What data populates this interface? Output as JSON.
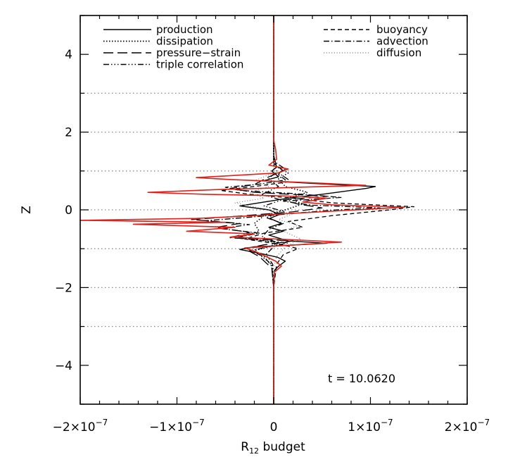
{
  "chart_data": {
    "type": "line",
    "xlabel_main": "R",
    "xlabel_sub": "12",
    "xlabel_rest": " budget",
    "ylabel": "Z",
    "xlim": [
      -2e-07,
      2e-07
    ],
    "ylim": [
      -5,
      5
    ],
    "x_ticks": [
      {
        "value": -2e-07,
        "mant": "−2×10",
        "exp": "−7"
      },
      {
        "value": -1e-07,
        "mant": "−1×10",
        "exp": "−7"
      },
      {
        "value": 0,
        "mant": "0",
        "exp": ""
      },
      {
        "value": 1e-07,
        "mant": "1×10",
        "exp": "−7"
      },
      {
        "value": 2e-07,
        "mant": "2×10",
        "exp": "−7"
      }
    ],
    "y_ticks": [
      {
        "value": -4,
        "label": "−4"
      },
      {
        "value": -2,
        "label": "−2"
      },
      {
        "value": 0,
        "label": "0"
      },
      {
        "value": 2,
        "label": "2"
      },
      {
        "value": 4,
        "label": "4"
      }
    ],
    "reference_lines_z": [
      -3,
      -2,
      -1,
      0,
      1,
      2,
      3
    ],
    "annotation": "t  =  10.0620",
    "legend": [
      {
        "name": "production",
        "style": "solid",
        "column": 0
      },
      {
        "name": "dissipation",
        "style": "dotted",
        "column": 0
      },
      {
        "name": "pressure−strain",
        "style": "longdash",
        "column": 0
      },
      {
        "name": "triple correlation",
        "style": "dashdotdot",
        "column": 0
      },
      {
        "name": "buoyancy",
        "style": "dashed",
        "column": 1
      },
      {
        "name": "advection",
        "style": "dashdot",
        "column": 1
      },
      {
        "name": "diffusion",
        "style": "lightdotted",
        "column": 1
      }
    ],
    "series": [
      {
        "name": "production",
        "style": "solid",
        "color": "#000000",
        "points": [
          [
            0,
            -5
          ],
          [
            0,
            -2
          ],
          [
            1e-09,
            -1.55
          ],
          [
            5e-09,
            -1.45
          ],
          [
            1.2e-08,
            -1.32
          ],
          [
            4e-09,
            -1.22
          ],
          [
            -1.4e-08,
            -1.12
          ],
          [
            -3.5e-08,
            -1.02
          ],
          [
            -2e-08,
            -0.95
          ],
          [
            2.5e-08,
            -0.9
          ],
          [
            5.5e-08,
            -0.86
          ],
          [
            1.5e-08,
            -0.8
          ],
          [
            -5e-09,
            -0.65
          ],
          [
            1e-08,
            -0.55
          ],
          [
            -5e-09,
            -0.45
          ],
          [
            8e-09,
            -0.35
          ],
          [
            -4e-09,
            -0.22
          ],
          [
            6e-09,
            -0.12
          ],
          [
            -5e-09,
            0
          ],
          [
            -3.5e-08,
            0.1
          ],
          [
            -1e-08,
            0.2
          ],
          [
            1.5e-08,
            0.3
          ],
          [
            5e-08,
            0.4
          ],
          [
            9.5e-08,
            0.55
          ],
          [
            1.05e-07,
            0.6
          ],
          [
            4e-08,
            0.68
          ],
          [
            -1e-08,
            0.75
          ],
          [
            5e-09,
            0.85
          ],
          [
            -2e-09,
            1.0
          ],
          [
            3e-09,
            1.1
          ],
          [
            0,
            1.4
          ],
          [
            0,
            1.8
          ],
          [
            0,
            5
          ]
        ]
      },
      {
        "name": "dissipation",
        "style": "dotted",
        "color": "#000000",
        "points": [
          [
            0,
            -5
          ],
          [
            0,
            -2
          ],
          [
            -2e-09,
            -1.4
          ],
          [
            -2e-08,
            -1.05
          ],
          [
            -5e-09,
            -0.95
          ],
          [
            5e-09,
            -0.85
          ],
          [
            -3.5e-08,
            -0.7
          ],
          [
            -1.5e-08,
            -0.55
          ],
          [
            -2e-08,
            -0.35
          ],
          [
            -1e-08,
            -0.15
          ],
          [
            1.2e-08,
            0
          ],
          [
            3e-08,
            0.15
          ],
          [
            1.5e-08,
            0.3
          ],
          [
            3.5e-08,
            0.45
          ],
          [
            1.2e-08,
            0.6
          ],
          [
            5e-09,
            0.8
          ],
          [
            1.5e-08,
            0.95
          ],
          [
            0,
            1.15
          ],
          [
            0,
            5
          ]
        ]
      },
      {
        "name": "pressure-strain",
        "style": "longdash",
        "color": "#000000",
        "points": [
          [
            0,
            -5
          ],
          [
            0,
            -2
          ],
          [
            -2e-09,
            -1.5
          ],
          [
            -1.5e-08,
            -1.2
          ],
          [
            -3e-08,
            -1.0
          ],
          [
            -1e-08,
            -0.9
          ],
          [
            2e-08,
            -0.8
          ],
          [
            -4.5e-08,
            -0.72
          ],
          [
            -2.5e-08,
            -0.58
          ],
          [
            -6e-08,
            -0.45
          ],
          [
            -3.5e-08,
            -0.35
          ],
          [
            -8.5e-08,
            -0.25
          ],
          [
            -3e-08,
            -0.15
          ],
          [
            2e-08,
            -0.05
          ],
          [
            5e-08,
            0.05
          ],
          [
            2.5e-08,
            0.15
          ],
          [
            1e-08,
            0.25
          ],
          [
            5.5e-08,
            0.35
          ],
          [
            -2e-08,
            0.45
          ],
          [
            -4.5e-08,
            0.55
          ],
          [
            -2e-08,
            0.65
          ],
          [
            -5e-09,
            0.85
          ],
          [
            1e-08,
            1.0
          ],
          [
            0,
            1.2
          ],
          [
            0,
            5
          ]
        ]
      },
      {
        "name": "triple correlation",
        "style": "dashdotdot",
        "color": "#000000",
        "points": [
          [
            0,
            -5
          ],
          [
            0,
            -2
          ],
          [
            -1e-09,
            -1.4
          ],
          [
            -8e-09,
            -1.15
          ],
          [
            -2e-09,
            -1.0
          ],
          [
            5e-09,
            -0.85
          ],
          [
            -1.2e-08,
            -0.7
          ],
          [
            -5e-09,
            -0.5
          ],
          [
            1e-08,
            -0.35
          ],
          [
            -8e-09,
            -0.2
          ],
          [
            1.2e-08,
            -0.05
          ],
          [
            -1e-08,
            0.1
          ],
          [
            8e-09,
            0.25
          ],
          [
            -1.2e-08,
            0.4
          ],
          [
            5e-09,
            0.6
          ],
          [
            -5e-09,
            0.8
          ],
          [
            3e-09,
            1.0
          ],
          [
            0,
            1.2
          ],
          [
            0,
            5
          ]
        ]
      },
      {
        "name": "buoyancy",
        "style": "dashed",
        "color": "#000000",
        "points": [
          [
            0,
            -5
          ],
          [
            0,
            -2
          ],
          [
            3e-09,
            -1.4
          ],
          [
            1e-08,
            -1.15
          ],
          [
            2.5e-08,
            -1.0
          ],
          [
            1e-08,
            -0.9
          ],
          [
            -3e-08,
            -0.75
          ],
          [
            -1e-08,
            -0.6
          ],
          [
            3e-08,
            -0.45
          ],
          [
            1.5e-08,
            -0.3
          ],
          [
            6e-08,
            -0.15
          ],
          [
            1.2e-07,
            0
          ],
          [
            1.45e-07,
            0.08
          ],
          [
            6e-08,
            0.18
          ],
          [
            2e-08,
            0.3
          ],
          [
            -2.5e-08,
            0.4
          ],
          [
            -5.5e-08,
            0.5
          ],
          [
            -2e-08,
            0.6
          ],
          [
            1.5e-08,
            0.72
          ],
          [
            5e-09,
            0.9
          ],
          [
            8e-09,
            1.05
          ],
          [
            0,
            1.2
          ],
          [
            0,
            5
          ]
        ]
      },
      {
        "name": "advection",
        "style": "dashdot",
        "color": "#000000",
        "points": [
          [
            0,
            -5
          ],
          [
            0,
            -2
          ],
          [
            -2e-09,
            -1.45
          ],
          [
            -1e-08,
            -1.2
          ],
          [
            -2.5e-08,
            -1.05
          ],
          [
            -5e-09,
            -0.95
          ],
          [
            1.5e-08,
            -0.85
          ],
          [
            -4e-08,
            -0.72
          ],
          [
            -1.5e-08,
            -0.6
          ],
          [
            -5.5e-08,
            -0.48
          ],
          [
            -2.5e-08,
            -0.38
          ],
          [
            -7e-08,
            -0.28
          ],
          [
            -2e-08,
            -0.18
          ],
          [
            2.5e-08,
            -0.08
          ],
          [
            6.5e-08,
            0
          ],
          [
            1.1e-07,
            0.05
          ],
          [
            4e-08,
            0.12
          ],
          [
            1e-08,
            0.22
          ],
          [
            7e-08,
            0.32
          ],
          [
            2e-08,
            0.42
          ],
          [
            -3.5e-08,
            0.5
          ],
          [
            -5e-08,
            0.58
          ],
          [
            -1.5e-08,
            0.66
          ],
          [
            1.5e-08,
            0.78
          ],
          [
            5e-09,
            0.95
          ],
          [
            1.2e-08,
            1.05
          ],
          [
            0,
            1.25
          ],
          [
            0,
            5
          ]
        ]
      },
      {
        "name": "diffusion",
        "style": "lightdotted",
        "color": "#808080",
        "points": [
          [
            0,
            -5
          ],
          [
            0,
            -1.5
          ],
          [
            3e-09,
            -1.2
          ],
          [
            1.2e-08,
            -0.95
          ],
          [
            2.8e-08,
            -0.75
          ],
          [
            1e-08,
            -0.55
          ],
          [
            2.5e-08,
            -0.4
          ],
          [
            5e-09,
            -0.25
          ],
          [
            2e-08,
            -0.1
          ],
          [
            -1.5e-08,
            0.05
          ],
          [
            -4e-08,
            0.18
          ],
          [
            -1e-08,
            0.3
          ],
          [
            -2.5e-08,
            0.45
          ],
          [
            -5e-09,
            0.6
          ],
          [
            -2e-08,
            0.75
          ],
          [
            0,
            0.95
          ],
          [
            0,
            5
          ]
        ]
      },
      {
        "name": "",
        "style": "solid",
        "color": "#e0201a",
        "points": [
          [
            0,
            -5
          ],
          [
            0,
            -2
          ],
          [
            1e-09,
            -1.6
          ],
          [
            8e-09,
            -1.45
          ],
          [
            2e-09,
            -1.32
          ],
          [
            -8e-09,
            -1.2
          ],
          [
            -1.8e-08,
            -1.08
          ],
          [
            -3e-08,
            -0.98
          ],
          [
            1e-08,
            -0.92
          ],
          [
            5.5e-08,
            -0.85
          ],
          [
            7e-08,
            -0.83
          ],
          [
            2e-08,
            -0.77
          ],
          [
            -4.5e-08,
            -0.7
          ],
          [
            -2e-08,
            -0.62
          ],
          [
            -9e-08,
            -0.55
          ],
          [
            -4e-08,
            -0.45
          ],
          [
            -1.45e-07,
            -0.37
          ],
          [
            -5e-08,
            -0.32
          ],
          [
            -2e-07,
            -0.27
          ],
          [
            -8e-08,
            -0.22
          ],
          [
            -2e-08,
            -0.15
          ],
          [
            1e-08,
            -0.1
          ],
          [
            5e-08,
            -0.05
          ],
          [
            1e-07,
            0.02
          ],
          [
            1.35e-07,
            0.07
          ],
          [
            6e-08,
            0.13
          ],
          [
            3e-08,
            0.2
          ],
          [
            5.5e-08,
            0.3
          ],
          [
            1e-08,
            0.36
          ],
          [
            -7e-08,
            0.4
          ],
          [
            -1.3e-07,
            0.45
          ],
          [
            -6e-08,
            0.52
          ],
          [
            2.5e-08,
            0.58
          ],
          [
            9.5e-08,
            0.63
          ],
          [
            3.5e-08,
            0.7
          ],
          [
            -4.5e-08,
            0.78
          ],
          [
            -8e-08,
            0.83
          ],
          [
            -3e-08,
            0.9
          ],
          [
            5e-09,
            0.95
          ],
          [
            1.5e-08,
            1.05
          ],
          [
            -5e-09,
            1.15
          ],
          [
            3e-09,
            1.3
          ],
          [
            2e-09,
            1.55
          ],
          [
            0,
            1.8
          ],
          [
            0,
            5
          ]
        ]
      }
    ]
  }
}
